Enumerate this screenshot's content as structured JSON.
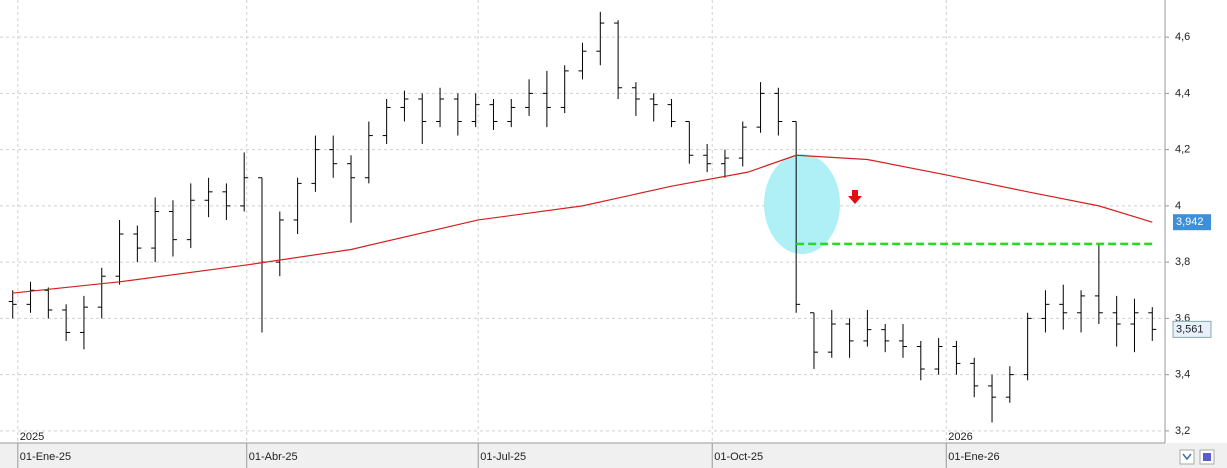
{
  "chart_data": {
    "type": "ohlc",
    "xlim": [
      "2024-12-25",
      "2026-03-28"
    ],
    "ylim": [
      3.157,
      4.732
    ],
    "yticks": [
      {
        "value": 3.2,
        "label": "3,2"
      },
      {
        "value": 3.4,
        "label": "3,4"
      },
      {
        "value": 3.6,
        "label": "3,6"
      },
      {
        "value": 3.8,
        "label": "3,8"
      },
      4,
      {
        "value": 4.2,
        "label": "4,2"
      },
      {
        "value": 4.4,
        "label": "4,4"
      },
      {
        "value": 4.6,
        "label": "4,6"
      }
    ],
    "xticks": [
      {
        "value": "2025-01-01",
        "label": "01-Ene-25"
      },
      {
        "value": "2025-04-01",
        "label": "01-Abr-25"
      },
      {
        "value": "2025-07-01",
        "label": "01-Jul-25"
      },
      {
        "value": "2025-10-01",
        "label": "01-Oct-25"
      },
      {
        "value": "2026-01-01",
        "label": "01-Ene-26"
      }
    ],
    "year_labels": [
      "2025",
      "2026"
    ],
    "grid": true,
    "x": [
      "2024-12-30",
      "2025-01-06",
      "2025-01-13",
      "2025-01-20",
      "2025-01-27",
      "2025-02-03",
      "2025-02-10",
      "2025-02-17",
      "2025-02-24",
      "2025-03-03",
      "2025-03-10",
      "2025-03-17",
      "2025-03-24",
      "2025-03-31",
      "2025-04-07",
      "2025-04-14",
      "2025-04-21",
      "2025-04-28",
      "2025-05-05",
      "2025-05-12",
      "2025-05-19",
      "2025-05-26",
      "2025-06-02",
      "2025-06-09",
      "2025-06-16",
      "2025-06-23",
      "2025-06-30",
      "2025-07-07",
      "2025-07-14",
      "2025-07-21",
      "2025-07-28",
      "2025-08-04",
      "2025-08-11",
      "2025-08-18",
      "2025-08-25",
      "2025-09-01",
      "2025-09-08",
      "2025-09-15",
      "2025-09-22",
      "2025-09-29",
      "2025-10-06",
      "2025-10-13",
      "2025-10-20",
      "2025-10-27",
      "2025-11-03",
      "2025-11-10",
      "2025-11-17",
      "2025-11-24",
      "2025-12-01",
      "2025-12-08",
      "2025-12-15",
      "2025-12-22",
      "2025-12-29",
      "2026-01-05",
      "2026-01-12",
      "2026-01-19",
      "2026-01-26",
      "2026-02-02",
      "2026-02-09",
      "2026-02-16",
      "2026-02-23",
      "2026-03-02",
      "2026-03-09",
      "2026-03-16",
      "2026-03-23"
    ],
    "open": [
      3.66,
      3.65,
      3.7,
      3.63,
      3.55,
      3.64,
      3.75,
      3.9,
      3.85,
      3.98,
      3.88,
      4.02,
      4.05,
      4.0,
      4.1,
      3.8,
      3.95,
      4.08,
      4.2,
      4.15,
      4.1,
      4.25,
      4.35,
      4.38,
      4.3,
      4.38,
      4.3,
      4.36,
      4.3,
      4.35,
      4.4,
      4.35,
      4.48,
      4.55,
      4.65,
      4.42,
      4.38,
      4.36,
      4.3,
      4.18,
      4.15,
      4.17,
      4.28,
      4.4,
      4.3,
      3.62,
      3.48,
      3.58,
      3.52,
      3.56,
      3.52,
      3.5,
      3.42,
      3.5,
      3.44,
      3.36,
      3.32,
      3.4,
      3.6,
      3.65,
      3.62,
      3.68,
      3.62,
      3.58,
      3.62
    ],
    "high": [
      3.7,
      3.73,
      3.71,
      3.65,
      3.68,
      3.78,
      3.95,
      3.93,
      4.03,
      4.02,
      4.08,
      4.1,
      4.08,
      4.19,
      4.1,
      3.98,
      4.1,
      4.25,
      4.25,
      4.18,
      4.3,
      4.38,
      4.41,
      4.4,
      4.42,
      4.4,
      4.4,
      4.38,
      4.38,
      4.45,
      4.48,
      4.5,
      4.58,
      4.69,
      4.66,
      4.44,
      4.4,
      4.38,
      4.3,
      4.22,
      4.2,
      4.3,
      4.44,
      4.42,
      4.3,
      3.62,
      3.63,
      3.6,
      3.63,
      3.58,
      3.58,
      3.52,
      3.53,
      3.52,
      3.46,
      3.4,
      3.43,
      3.62,
      3.7,
      3.72,
      3.7,
      3.865,
      3.68,
      3.67,
      3.64
    ],
    "low": [
      3.6,
      3.62,
      3.6,
      3.52,
      3.49,
      3.6,
      3.72,
      3.8,
      3.8,
      3.82,
      3.85,
      3.96,
      3.95,
      3.98,
      3.55,
      3.75,
      3.9,
      4.05,
      4.1,
      3.94,
      4.08,
      4.22,
      4.3,
      4.22,
      4.28,
      4.25,
      4.28,
      4.27,
      4.28,
      4.32,
      4.28,
      4.33,
      4.45,
      4.5,
      4.38,
      4.32,
      4.3,
      4.28,
      4.15,
      4.12,
      4.1,
      4.14,
      4.26,
      4.25,
      3.62,
      3.42,
      3.46,
      3.46,
      3.5,
      3.48,
      3.46,
      3.38,
      3.4,
      3.4,
      3.32,
      3.23,
      3.3,
      3.38,
      3.55,
      3.56,
      3.55,
      3.58,
      3.5,
      3.48,
      3.52
    ],
    "close": [
      3.65,
      3.7,
      3.63,
      3.55,
      3.64,
      3.75,
      3.9,
      3.85,
      3.98,
      3.88,
      4.02,
      4.05,
      4.0,
      4.1,
      3.8,
      3.95,
      4.08,
      4.2,
      4.15,
      4.1,
      4.25,
      4.35,
      4.38,
      4.3,
      4.38,
      4.3,
      4.36,
      4.3,
      4.35,
      4.4,
      4.35,
      4.48,
      4.55,
      4.65,
      4.42,
      4.38,
      4.36,
      4.3,
      4.18,
      4.15,
      4.17,
      4.28,
      4.4,
      4.3,
      3.65,
      3.48,
      3.58,
      3.52,
      3.56,
      3.52,
      3.5,
      3.42,
      3.5,
      3.44,
      3.36,
      3.32,
      3.4,
      3.6,
      3.65,
      3.62,
      3.68,
      3.62,
      3.58,
      3.62,
      3.561
    ],
    "color": "#000000",
    "last_label": "3,561",
    "series": [
      {
        "x": [
          "2024-12-30",
          "2025-02-10",
          "2025-04-01",
          "2025-05-12",
          "2025-07-01",
          "2025-08-11",
          "2025-09-15",
          "2025-10-15",
          "2025-11-03",
          "2025-12-01",
          "2026-01-01",
          "2026-02-02",
          "2026-03-02",
          "2026-03-23"
        ],
        "values": [
          3.69,
          3.73,
          3.79,
          3.845,
          3.95,
          4.0,
          4.07,
          4.12,
          4.18,
          4.165,
          4.11,
          4.05,
          4.0,
          3.942
        ],
        "color": "#d42020",
        "last_label": "3,942"
      }
    ],
    "level": {
      "x": [
        "2025-11-03",
        "2026-03-23"
      ],
      "value": 3.865,
      "color": "#22dd22"
    }
  }
}
